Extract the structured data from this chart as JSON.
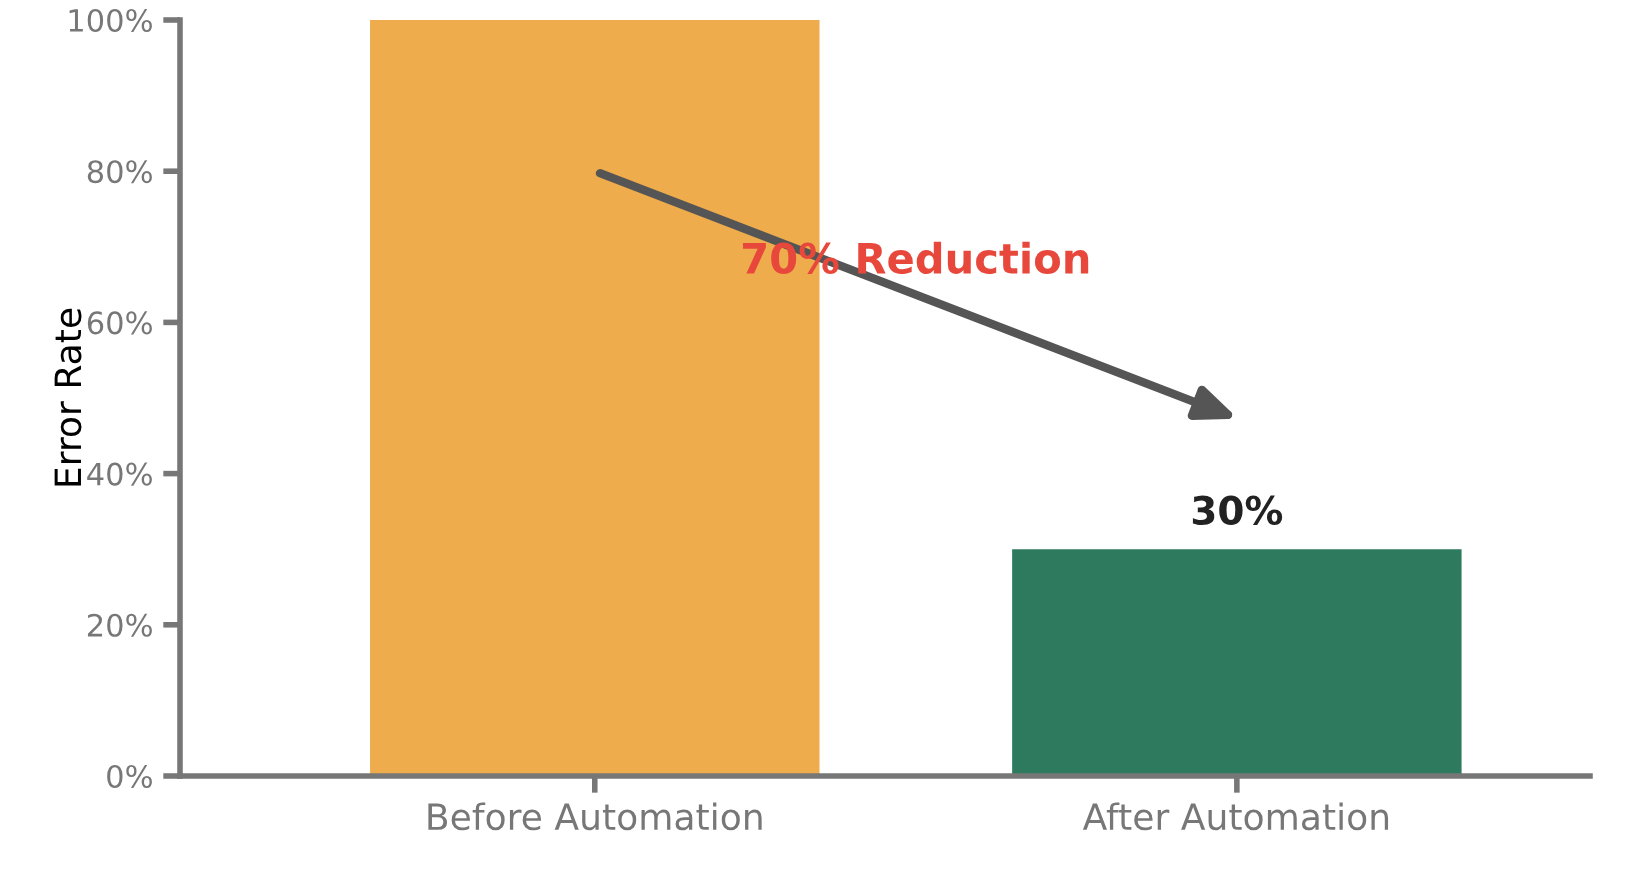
{
  "chart_data": {
    "type": "bar",
    "ylabel": "Error Rate",
    "categories": [
      "Before Automation",
      "After Automation"
    ],
    "values": [
      100,
      30
    ],
    "colors": [
      "#eeac4c",
      "#2e7a5e"
    ],
    "value_labels": [
      null,
      "30%"
    ],
    "ylim": [
      0,
      100
    ],
    "yticks": [
      {
        "value": 0,
        "label": "0%"
      },
      {
        "value": 20,
        "label": "20%"
      },
      {
        "value": 40,
        "label": "40%"
      },
      {
        "value": 60,
        "label": "60%"
      },
      {
        "value": 80,
        "label": "80%"
      },
      {
        "value": 100,
        "label": "100%"
      }
    ],
    "annotations": [
      "70% Reduction"
    ],
    "grid": false,
    "legend": false
  }
}
